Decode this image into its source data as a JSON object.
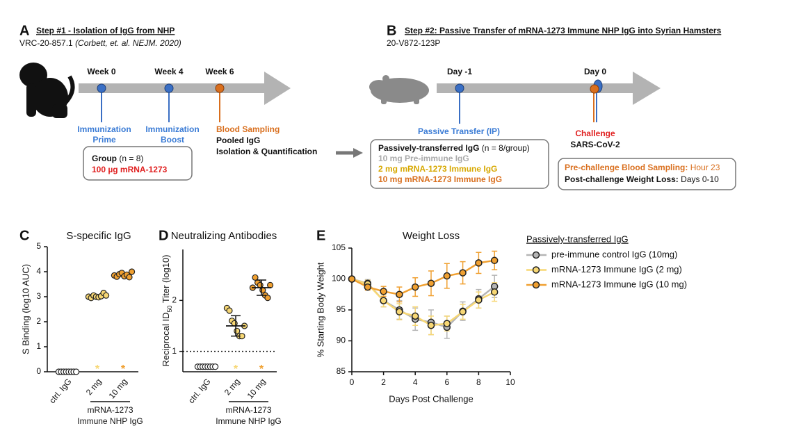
{
  "panel_a": {
    "label": "A",
    "title": "Step #1 - Isolation of IgG from NHP",
    "study": "VRC-20-857.1",
    "citation": "(Corbett, et. al. NEJM. 2020)",
    "timepoints": [
      "Week 0",
      "Week  4",
      "Week 6"
    ],
    "event1": [
      "Immunization",
      "Prime"
    ],
    "event2": [
      "Immunization",
      "Boost"
    ],
    "event3": [
      "Blood Sampling",
      "Pooled IgG",
      "Isolation & Quantification"
    ],
    "group_label": "Group",
    "group_n": "(n = 8)",
    "group_dose": "100 µg mRNA-1273"
  },
  "panel_b": {
    "label": "B",
    "title": "Step #2: Passive Transfer of mRNA-1273 Immune NHP IgG into Syrian Hamsters",
    "study": "20-V872-123P",
    "timepoints": [
      "Day -1",
      "Day 0"
    ],
    "transfer": "Passive Transfer (IP)",
    "challenge": "Challenge",
    "virus": "SARS-CoV-2",
    "box_title": "Passively-transferred IgG",
    "box_n": "(n = 8/group)",
    "groups": [
      "10 mg Pre-immune IgG",
      "2 mg mRNA-1273 Immune IgG",
      "10 mg mRNA-1273 Immune IgG"
    ],
    "sampling": "Pre-challenge Blood Sampling:",
    "sampling_time": "Hour 23",
    "weight": "Post-challenge Weight Loss:",
    "weight_time": "Days 0-10"
  },
  "chart_data": [
    {
      "type": "dot",
      "label": "C",
      "title": "S-specific IgG",
      "y_label": "S Binding (log10 AUC)",
      "categories": [
        "ctrl. IgG",
        "2 mg",
        "10 mg"
      ],
      "group_label": [
        "mRNA-1273",
        "Immune NHP IgG"
      ],
      "colors": [
        "#ffffff",
        "#f7d774",
        "#f0a030"
      ],
      "values": [
        [
          0,
          0,
          0,
          0,
          0,
          0,
          0,
          0
        ],
        [
          3.0,
          2.95,
          3.05,
          3.0,
          2.98,
          3.02,
          3.15,
          3.05
        ],
        [
          3.85,
          3.8,
          3.9,
          3.95,
          3.82,
          3.88,
          3.78,
          4.0
        ]
      ],
      "ylim": [
        0,
        5
      ],
      "yticks": [
        0,
        1,
        2,
        3,
        4,
        5
      ],
      "annotations": [
        {
          "category": "2 mg",
          "text": "*",
          "color": "#f7d774"
        },
        {
          "category": "10 mg",
          "text": "*",
          "color": "#f0a030"
        }
      ]
    },
    {
      "type": "dot",
      "label": "D",
      "title": "Neutralizing Antibodies",
      "y_label": [
        "Reciprocal ID",
        "50",
        " Titer (log10)"
      ],
      "categories": [
        "ctrl. IgG",
        "2 mg",
        "10 mg"
      ],
      "group_label": [
        "mRNA-1273",
        "Immune NHP IgG"
      ],
      "colors": [
        "#ffffff",
        "#f7d774",
        "#f0a030"
      ],
      "values": [
        [
          0.7,
          0.7,
          0.7,
          0.7,
          0.7,
          0.7,
          0.7,
          0.7
        ],
        [
          1.85,
          1.8,
          1.6,
          1.55,
          1.4,
          1.3,
          1.3,
          1.5
        ],
        [
          2.25,
          2.45,
          2.35,
          2.3,
          2.2,
          2.1,
          2.05,
          2.3
        ]
      ],
      "means": [
        null,
        1.5,
        2.25
      ],
      "sds": [
        null,
        0.2,
        0.15
      ],
      "reference_line": 1,
      "ylim": [
        0.6,
        3
      ],
      "yticks": [
        1,
        2
      ],
      "annotations": [
        {
          "category": "2 mg",
          "text": "*",
          "color": "#f7d774"
        },
        {
          "category": "10 mg",
          "text": "*",
          "color": "#f0a030"
        }
      ]
    },
    {
      "type": "line",
      "label": "E",
      "title": "Weight Loss",
      "x_label": "Days Post Challenge",
      "y_label": "% Starting Body Weight",
      "x": [
        0,
        1,
        2,
        3,
        4,
        5,
        6,
        7,
        8,
        9
      ],
      "xlim": [
        0,
        10
      ],
      "xticks": [
        0,
        2,
        4,
        6,
        8,
        10
      ],
      "ylim": [
        85,
        105
      ],
      "yticks": [
        85,
        90,
        95,
        100,
        105
      ],
      "legend_title": "Passively-transferred IgG",
      "series": [
        {
          "name": "pre-immune control IgG (10mg)",
          "color": "#b5b5b5",
          "values": [
            100,
            99.3,
            96.5,
            95,
            93.5,
            93,
            92.2,
            94.8,
            96.8,
            98.8
          ],
          "errors": [
            0.3,
            0.6,
            1.0,
            1.5,
            1.8,
            2.0,
            1.8,
            1.5,
            1.5,
            1.8
          ]
        },
        {
          "name": "mRNA-1273 Immune IgG (2 mg)",
          "color": "#f7d774",
          "values": [
            100,
            99.2,
            96.5,
            94.7,
            94,
            92.5,
            92.8,
            94.7,
            96.6,
            97.9
          ],
          "errors": [
            0.3,
            0.6,
            1.0,
            1.3,
            1.5,
            1.5,
            1.2,
            1.2,
            1.3,
            1.5
          ]
        },
        {
          "name": "mRNA-1273 Immune IgG (10 mg)",
          "color": "#f0a030",
          "values": [
            100,
            98.7,
            98,
            97.5,
            98.7,
            99.3,
            100.5,
            101,
            102.6,
            103
          ],
          "errors": [
            0.3,
            0.5,
            0.8,
            1.2,
            1.5,
            2.0,
            2.0,
            1.8,
            1.7,
            1.5
          ]
        }
      ]
    }
  ]
}
